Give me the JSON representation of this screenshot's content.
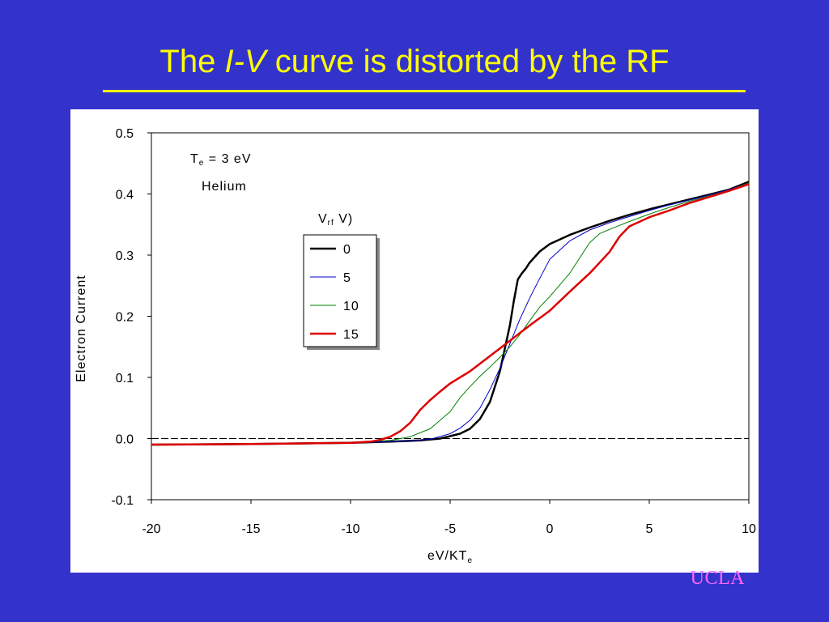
{
  "slide": {
    "title_pre": "The",
    "title_italic": "I-V",
    "title_post": "curve is distorted by the RF",
    "footer_logo": "UCLA",
    "colors": {
      "background": "#3333cc",
      "title": "#ffff00",
      "logo": "#ff66ff"
    }
  },
  "chart_data": {
    "type": "line",
    "title": "",
    "xlabel": "eV/KT",
    "xlabel_sub": "e",
    "ylabel": "Electron Current",
    "xlim": [
      -20,
      10
    ],
    "ylim": [
      -0.1,
      0.5
    ],
    "x_ticks": [
      "-20",
      "-15",
      "-10",
      "-5",
      "0",
      "5",
      "10"
    ],
    "y_ticks": [
      "-0.1",
      "0.0",
      "0.1",
      "0.2",
      "0.3",
      "0.4",
      "0.5"
    ],
    "zero_line": "dashed",
    "grid": false,
    "annotations": {
      "te_main": "T",
      "te_sub": "e",
      "te_value": "= 3 eV",
      "gas": "Helium",
      "legend_title_main": "V",
      "legend_title_sub": "rf",
      "legend_title_tail": "V)"
    },
    "legend_position": "center",
    "series": [
      {
        "name": "0",
        "color": "#000000",
        "width": 2.5,
        "x": [
          -20,
          -15,
          -10,
          -8,
          -6.5,
          -5.5,
          -4.5,
          -4,
          -3.5,
          -3,
          -2.5,
          -2,
          -1.8,
          -1.6,
          -1.4,
          -1.2,
          -1,
          -0.5,
          0,
          1,
          2,
          3,
          4,
          5,
          6,
          7,
          8,
          9,
          10
        ],
        "y": [
          -0.01,
          -0.009,
          -0.007,
          -0.005,
          -0.003,
          0.0,
          0.008,
          0.016,
          0.032,
          0.06,
          0.11,
          0.185,
          0.225,
          0.26,
          0.27,
          0.278,
          0.288,
          0.306,
          0.318,
          0.333,
          0.345,
          0.356,
          0.366,
          0.375,
          0.383,
          0.391,
          0.399,
          0.407,
          0.42
        ]
      },
      {
        "name": "5",
        "color": "#0000cc",
        "width": 1,
        "x": [
          -20,
          -15,
          -10,
          -8,
          -7,
          -6,
          -5,
          -4.5,
          -4,
          -3.5,
          -3,
          -2.5,
          -2,
          -1.5,
          -1,
          -0.5,
          0,
          1,
          2,
          3,
          4,
          5,
          6,
          7,
          8,
          9,
          10
        ],
        "y": [
          -0.01,
          -0.009,
          -0.007,
          -0.005,
          -0.004,
          -0.001,
          0.008,
          0.017,
          0.03,
          0.05,
          0.08,
          0.115,
          0.155,
          0.195,
          0.23,
          0.262,
          0.293,
          0.323,
          0.341,
          0.353,
          0.363,
          0.373,
          0.382,
          0.39,
          0.398,
          0.407,
          0.418
        ]
      },
      {
        "name": "10",
        "color": "#008000",
        "width": 1,
        "x": [
          -20,
          -15,
          -10,
          -9,
          -8,
          -7,
          -6,
          -5,
          -4.5,
          -4,
          -3.5,
          -3,
          -2.5,
          -2,
          -1.5,
          -1,
          -0.5,
          0,
          1,
          2,
          2.5,
          3,
          4,
          5,
          6,
          7,
          8,
          9,
          10
        ],
        "y": [
          -0.01,
          -0.009,
          -0.007,
          -0.005,
          -0.003,
          0.003,
          0.016,
          0.044,
          0.067,
          0.085,
          0.102,
          0.117,
          0.133,
          0.15,
          0.17,
          0.193,
          0.215,
          0.232,
          0.27,
          0.32,
          0.335,
          0.342,
          0.355,
          0.367,
          0.378,
          0.388,
          0.397,
          0.406,
          0.418
        ]
      },
      {
        "name": "15",
        "color": "#dd0000",
        "width": 2.5,
        "x": [
          -20,
          -15,
          -10,
          -9,
          -8.5,
          -8,
          -7.5,
          -7,
          -6.5,
          -6,
          -5.5,
          -5,
          -4,
          -3,
          -2,
          -1,
          0,
          1,
          2,
          3,
          3.5,
          4,
          5,
          6,
          7,
          8,
          9,
          10
        ],
        "y": [
          -0.01,
          -0.009,
          -0.007,
          -0.005,
          -0.002,
          0.003,
          0.012,
          0.026,
          0.047,
          0.063,
          0.077,
          0.09,
          0.11,
          0.135,
          0.16,
          0.185,
          0.209,
          0.24,
          0.27,
          0.305,
          0.33,
          0.347,
          0.362,
          0.373,
          0.385,
          0.395,
          0.405,
          0.416
        ]
      }
    ]
  }
}
